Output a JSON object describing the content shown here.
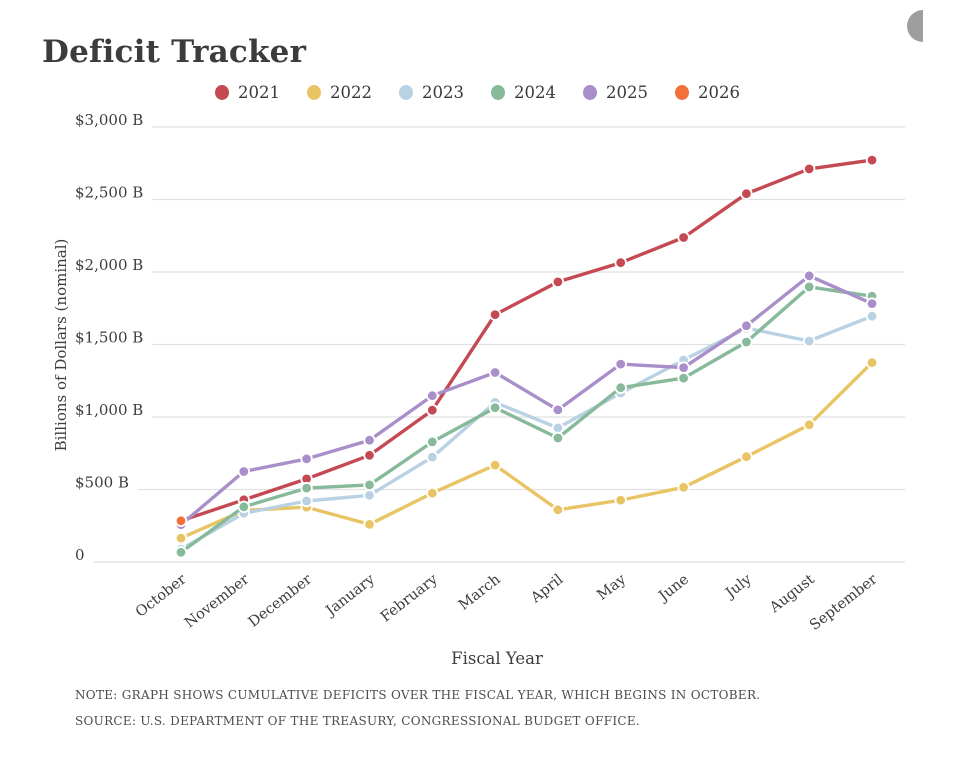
{
  "header": {
    "title": "Deficit Tracker"
  },
  "chart_data": {
    "type": "line",
    "title": "Deficit Tracker",
    "xlabel": "Fiscal Year",
    "ylabel": "Billions of Dollars (nominal)",
    "x": [
      "October",
      "November",
      "December",
      "January",
      "February",
      "March",
      "April",
      "May",
      "June",
      "July",
      "August",
      "September"
    ],
    "ylim": [
      0,
      3000
    ],
    "ytick_step": 500,
    "ytick_labels": [
      "0",
      "$500 B",
      "$1,000 B",
      "$1,500 B",
      "$2,000 B",
      "$2,500 B",
      "$3,000 B"
    ],
    "grid": true,
    "legend_position": "top",
    "series": [
      {
        "name": "2021",
        "color": "#c54952",
        "values": [
          284,
          429,
          573,
          736,
          1047,
          1706,
          1932,
          2064,
          2238,
          2540,
          2711,
          2772
        ]
      },
      {
        "name": "2022",
        "color": "#e9c465",
        "values": [
          165,
          356,
          378,
          259,
          475,
          668,
          360,
          426,
          515,
          726,
          946,
          1375
        ]
      },
      {
        "name": "2023",
        "color": "#b8d1e3",
        "values": [
          88,
          336,
          421,
          460,
          723,
          1101,
          925,
          1165,
          1393,
          1613,
          1524,
          1695
        ]
      },
      {
        "name": "2024",
        "color": "#86ba9a",
        "values": [
          67,
          381,
          510,
          532,
          828,
          1064,
          855,
          1202,
          1268,
          1517,
          1897,
          1833
        ]
      },
      {
        "name": "2025",
        "color": "#a98fc9",
        "values": [
          257,
          624,
          711,
          840,
          1147,
          1307,
          1049,
          1365,
          1341,
          1629,
          1974,
          1782
        ]
      },
      {
        "name": "2026",
        "color": "#f4703a",
        "values": [
          284
        ]
      }
    ]
  },
  "notes": {
    "note": "NOTE: GRAPH SHOWS CUMULATIVE DEFICITS OVER THE FISCAL YEAR, WHICH BEGINS IN OCTOBER.",
    "source": "SOURCE: U.S. DEPARTMENT OF THE TREASURY, CONGRESSIONAL BUDGET OFFICE."
  },
  "colors": {
    "text": "#3d3d3d",
    "gridline": "#e1e1e1",
    "note_text": "#4c4c4c"
  }
}
